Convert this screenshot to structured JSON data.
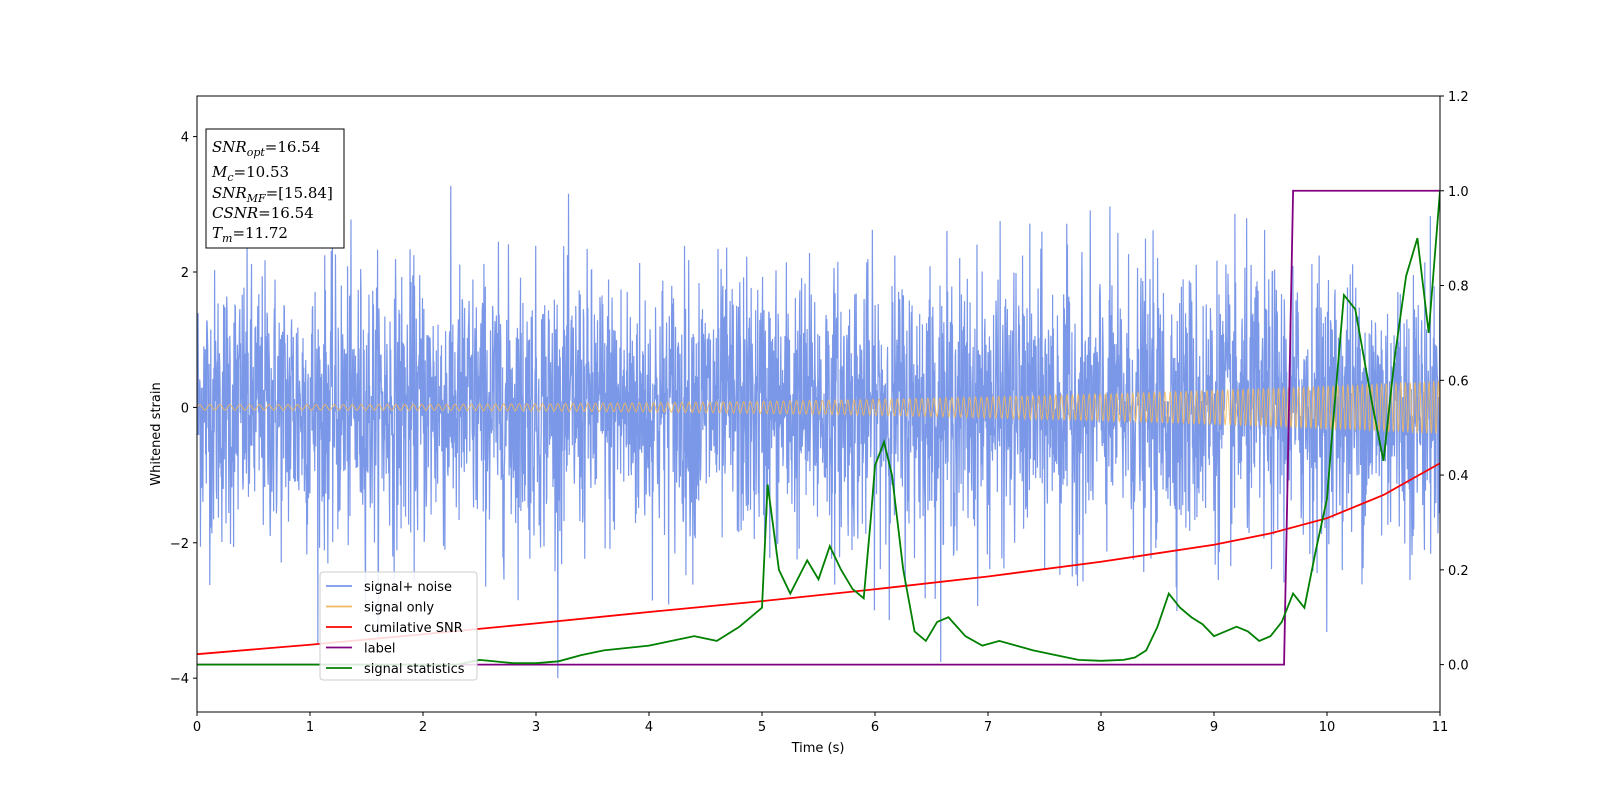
{
  "chart_data": {
    "type": "line",
    "xlabel": "Time (s)",
    "ylabel_left": "Whitened strain",
    "ylabel_right": "",
    "xlim": [
      0,
      11
    ],
    "ylim_left": [
      -4.5,
      4.6
    ],
    "ylim_right": [
      -0.1,
      1.2
    ],
    "xticks": [
      "0",
      "1",
      "2",
      "3",
      "4",
      "5",
      "6",
      "7",
      "8",
      "9",
      "10",
      "11"
    ],
    "yticks_left": [
      "−4",
      "−2",
      "0",
      "2",
      "4"
    ],
    "yticks_right": [
      "0.0",
      "0.2",
      "0.4",
      "0.6",
      "0.8",
      "1.0",
      "1.2"
    ],
    "legend_position": "lower-left",
    "colors": {
      "signal_noise": "#7a97e8",
      "signal_only": "#f2b75c",
      "cumulative_snr": "#ff0000",
      "label": "#800080",
      "signal_statistics": "#008000"
    },
    "info_box": {
      "lines": [
        {
          "sym": "SNR",
          "sub": "opt",
          "value": "=16.54"
        },
        {
          "sym": "M",
          "sub": "c",
          "value": "=10.53"
        },
        {
          "sym": "SNR",
          "sub": "MF",
          "value": "=[15.84]"
        },
        {
          "sym": "CSNR",
          "sub": "",
          "value": "=16.54"
        },
        {
          "sym": "T",
          "sub": "m",
          "value": "=11.72"
        }
      ]
    },
    "series": [
      {
        "name": "signal+ noise",
        "axis": "left",
        "description_type": "noise",
        "noise_sigma": 1.0,
        "max_abs": 4.0
      },
      {
        "name": "signal only",
        "axis": "left",
        "description_type": "chirp",
        "amplitude_start": 0.04,
        "amplitude_end": 0.4
      },
      {
        "name": "cumilative SNR",
        "axis": "right",
        "x": [
          0,
          1,
          2,
          3,
          4,
          5,
          6,
          7,
          8,
          9,
          9.5,
          10,
          10.5,
          11
        ],
        "y": [
          0.022,
          0.042,
          0.064,
          0.087,
          0.111,
          0.134,
          0.159,
          0.186,
          0.217,
          0.253,
          0.277,
          0.309,
          0.358,
          0.425
        ]
      },
      {
        "name": "label",
        "axis": "right",
        "x": [
          0,
          9.62,
          9.7,
          11
        ],
        "y": [
          0.0,
          0.0,
          1.0,
          1.0
        ]
      },
      {
        "name": "signal statistics",
        "axis": "right",
        "x": [
          0,
          0.5,
          1,
          1.5,
          2,
          2.3,
          2.5,
          2.8,
          3,
          3.2,
          3.4,
          3.6,
          3.8,
          4,
          4.2,
          4.4,
          4.6,
          4.8,
          4.9,
          5.0,
          5.05,
          5.15,
          5.25,
          5.4,
          5.5,
          5.6,
          5.7,
          5.8,
          5.9,
          5.96,
          6.0,
          6.08,
          6.15,
          6.25,
          6.35,
          6.45,
          6.55,
          6.65,
          6.8,
          6.95,
          7.1,
          7.25,
          7.4,
          7.6,
          7.8,
          8.0,
          8.2,
          8.3,
          8.4,
          8.5,
          8.6,
          8.7,
          8.8,
          8.9,
          9.0,
          9.1,
          9.2,
          9.3,
          9.4,
          9.5,
          9.6,
          9.7,
          9.8,
          9.9,
          10.0,
          10.05,
          10.15,
          10.25,
          10.4,
          10.5,
          10.6,
          10.7,
          10.8,
          10.9,
          11.0
        ],
        "y": [
          0.0,
          0.0,
          0.0,
          0.0,
          0.0,
          0.0,
          0.01,
          0.003,
          0.003,
          0.007,
          0.02,
          0.03,
          0.035,
          0.04,
          0.05,
          0.06,
          0.05,
          0.08,
          0.1,
          0.12,
          0.38,
          0.2,
          0.15,
          0.22,
          0.18,
          0.25,
          0.2,
          0.16,
          0.14,
          0.3,
          0.42,
          0.47,
          0.4,
          0.2,
          0.07,
          0.05,
          0.09,
          0.1,
          0.06,
          0.04,
          0.05,
          0.04,
          0.03,
          0.02,
          0.01,
          0.008,
          0.01,
          0.015,
          0.03,
          0.08,
          0.15,
          0.12,
          0.1,
          0.085,
          0.06,
          0.07,
          0.08,
          0.07,
          0.05,
          0.06,
          0.09,
          0.15,
          0.12,
          0.24,
          0.35,
          0.5,
          0.78,
          0.75,
          0.55,
          0.43,
          0.65,
          0.82,
          0.9,
          0.7,
          1.0
        ]
      }
    ]
  }
}
